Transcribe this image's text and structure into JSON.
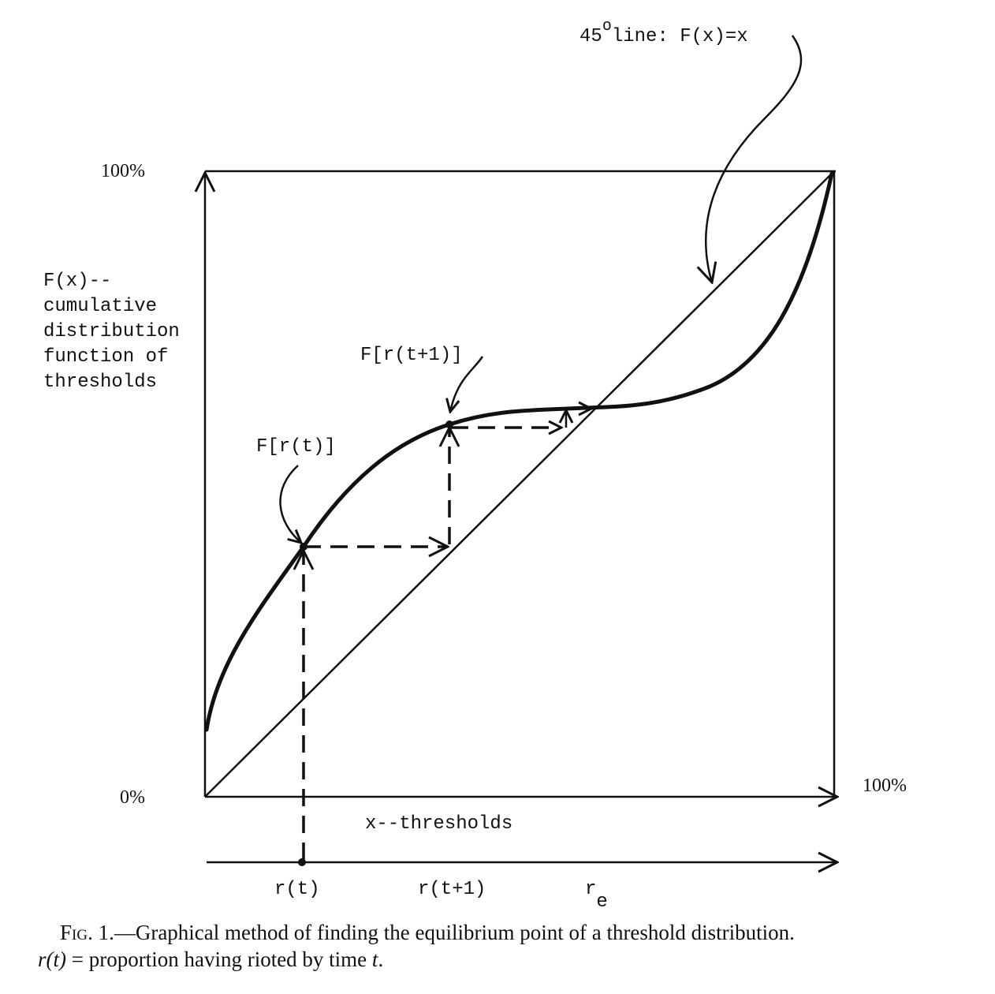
{
  "figure": {
    "top_label": {
      "base": "45",
      "sup": "o",
      "rest": "line: F(x)=x"
    },
    "y_top": "100%",
    "y_bottom": "0%",
    "x_right": "100%",
    "y_axis_label": [
      "F(x)--",
      "cumulative",
      "distribution",
      "function of",
      "thresholds"
    ],
    "x_axis_label": "x--thresholds",
    "point_labels": {
      "f_rt1": "F[r(t+1)]",
      "f_rt": "F[r(t)]"
    },
    "bottom_axis": {
      "rt": "r(t)",
      "rt1": "r(t+1)",
      "re_base": "r",
      "re_sub": "e"
    }
  },
  "caption": {
    "label": "Fig. 1.",
    "text": "—Graphical method of finding the equilibrium point of a threshold distribution.",
    "line2": [
      "r(t)",
      " = proportion having rioted by time ",
      "t",
      "."
    ]
  }
}
